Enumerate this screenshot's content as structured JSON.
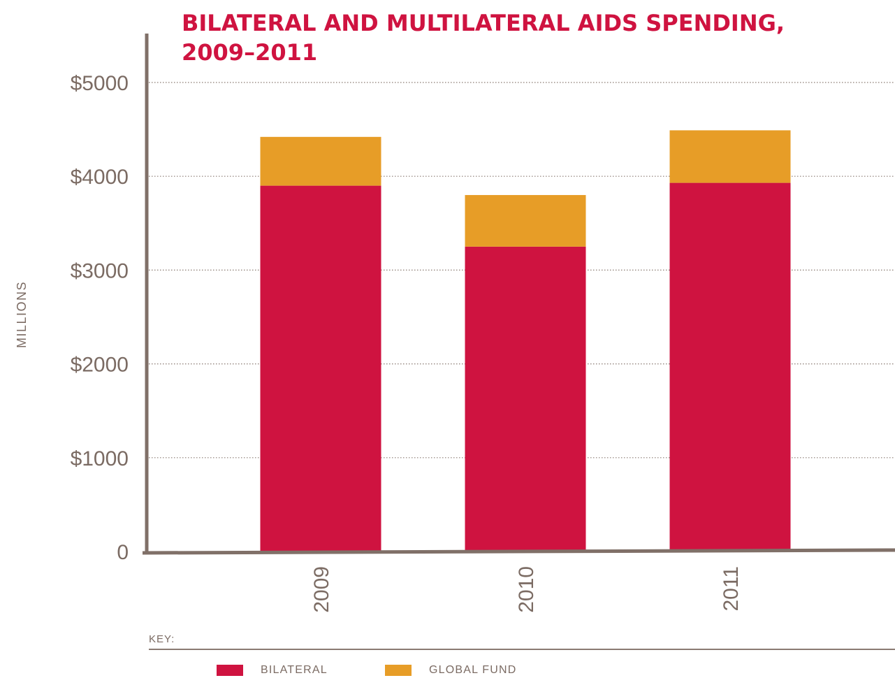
{
  "chart_data": {
    "type": "bar",
    "stacked": true,
    "title": "BILATERAL AND MULTILATERAL AIDS SPENDING, 2009–2011",
    "title_lines": [
      "BILATERAL AND MULTILATERAL AIDS SPENDING,",
      "2009–2011"
    ],
    "ylabel": "MILLIONS",
    "xlabel": "",
    "categories": [
      "2009",
      "2010",
      "2011"
    ],
    "series": [
      {
        "name": "BILATERAL",
        "color": "#cf1340",
        "values": [
          3900,
          3250,
          3930
        ]
      },
      {
        "name": "GLOBAL FUND",
        "color": "#e79d27",
        "values": [
          520,
          550,
          560
        ]
      }
    ],
    "ylim": [
      0,
      5000
    ],
    "yticks": [
      0,
      1000,
      2000,
      3000,
      4000,
      5000
    ],
    "ytick_labels": [
      "0",
      "$1000",
      "$2000",
      "$3000",
      "$4000",
      "$5000"
    ],
    "grid": "horizontal dotted",
    "legend_title": "KEY:",
    "legend_position": "bottom"
  }
}
